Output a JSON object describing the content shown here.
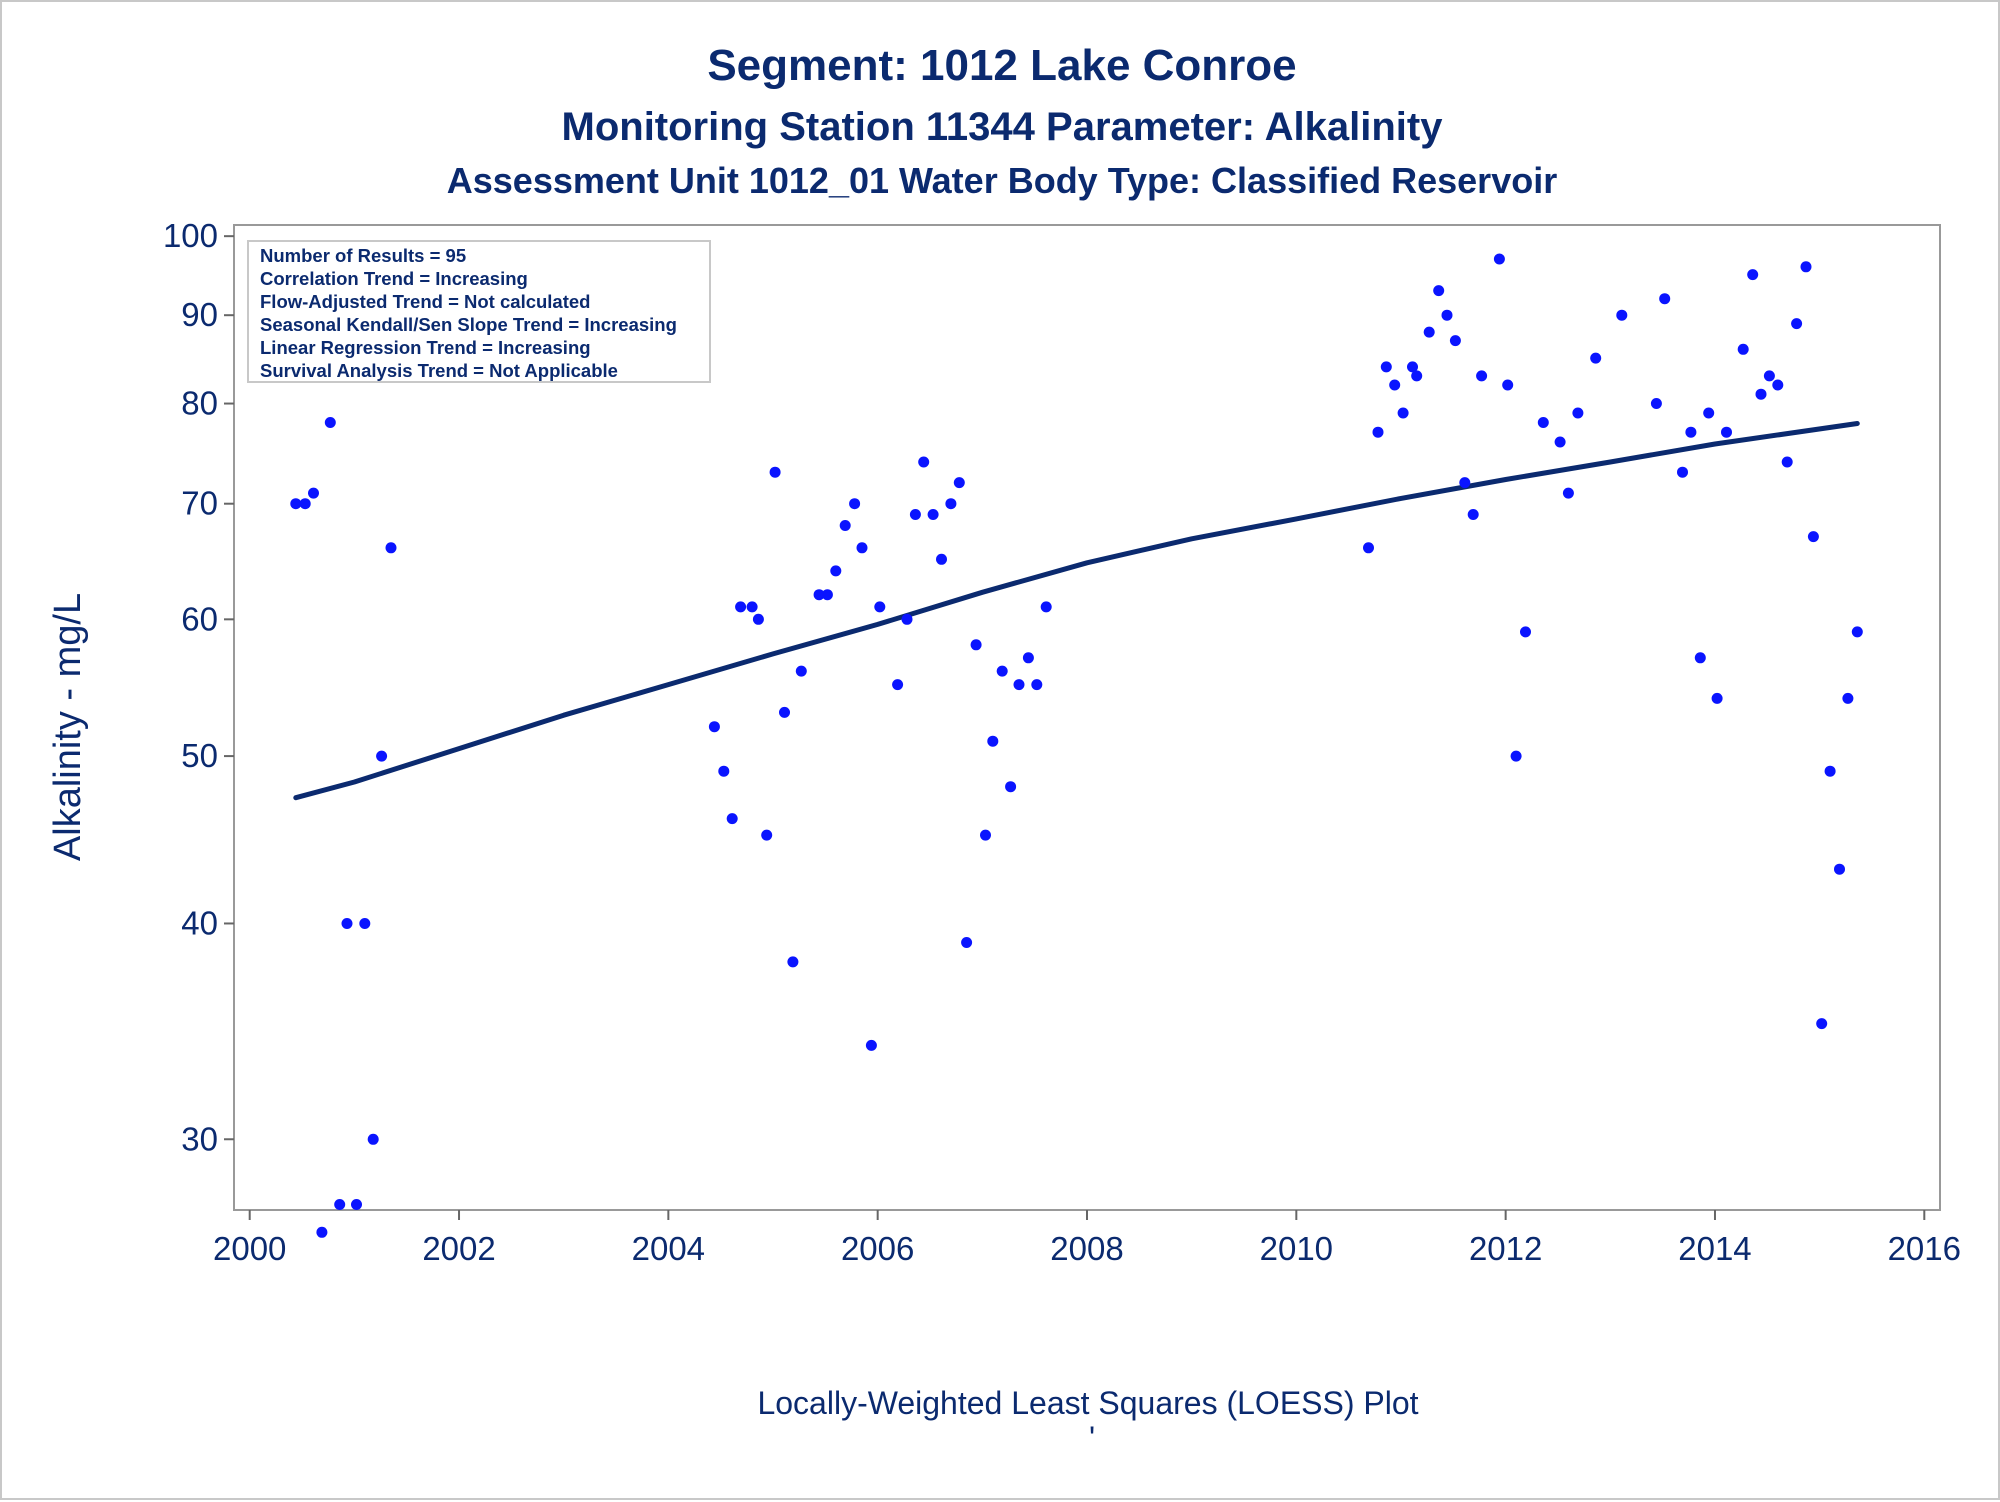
{
  "chart_data": {
    "type": "scatter",
    "title": "Segment: 1012  Lake Conroe",
    "subtitle1": "Monitoring Station 11344 Parameter: Alkalinity",
    "subtitle2": "Assessment Unit 1012_01   Water Body Type: Classified Reservoir",
    "xlabel": "",
    "ylabel": "Alkalinity - mg/L",
    "footnote": "Locally-Weighted Least Squares (LOESS) Plot",
    "footnote_mark": "'",
    "xlim": [
      1999.85,
      2016.15
    ],
    "ylim": [
      27.3,
      101.5
    ],
    "y_scale": "log",
    "x_ticks": [
      2000,
      2002,
      2004,
      2006,
      2008,
      2010,
      2012,
      2014,
      2016
    ],
    "y_ticks": [
      30,
      40,
      50,
      60,
      70,
      80,
      90,
      100
    ],
    "grid": false,
    "legend_placement": "top-left",
    "stats_box": [
      "Number of Results = 95",
      "Correlation Trend = Increasing",
      "Flow-Adjusted Trend = Not calculated",
      "Seasonal Kendall/Sen Slope Trend = Increasing",
      "Linear Regression Trend = Increasing",
      "Survival Analysis Trend = Not Applicable"
    ],
    "series": [
      {
        "kind": "points",
        "color": "#0a14ff",
        "points": [
          [
            2000.44,
            70
          ],
          [
            2000.53,
            70
          ],
          [
            2000.61,
            71
          ],
          [
            2000.69,
            26.5
          ],
          [
            2000.77,
            78
          ],
          [
            2000.86,
            27.5
          ],
          [
            2000.93,
            40
          ],
          [
            2001.02,
            27.5
          ],
          [
            2001.1,
            40
          ],
          [
            2001.18,
            30
          ],
          [
            2001.26,
            50
          ],
          [
            2001.35,
            66
          ],
          [
            2004.44,
            52
          ],
          [
            2004.53,
            49
          ],
          [
            2004.61,
            46
          ],
          [
            2004.69,
            61
          ],
          [
            2004.8,
            61
          ],
          [
            2004.86,
            60
          ],
          [
            2004.94,
            45
          ],
          [
            2005.02,
            73
          ],
          [
            2005.11,
            53
          ],
          [
            2005.19,
            38
          ],
          [
            2005.27,
            56
          ],
          [
            2005.44,
            62
          ],
          [
            2005.52,
            62
          ],
          [
            2005.6,
            64
          ],
          [
            2005.69,
            68
          ],
          [
            2005.78,
            70
          ],
          [
            2005.85,
            66
          ],
          [
            2005.94,
            34
          ],
          [
            2006.02,
            61
          ],
          [
            2006.19,
            55
          ],
          [
            2006.28,
            60
          ],
          [
            2006.36,
            69
          ],
          [
            2006.44,
            74
          ],
          [
            2006.53,
            69
          ],
          [
            2006.61,
            65
          ],
          [
            2006.7,
            70
          ],
          [
            2006.78,
            72
          ],
          [
            2006.85,
            39
          ],
          [
            2006.94,
            58
          ],
          [
            2007.03,
            45
          ],
          [
            2007.1,
            51
          ],
          [
            2007.19,
            56
          ],
          [
            2007.27,
            48
          ],
          [
            2007.35,
            55
          ],
          [
            2007.44,
            57
          ],
          [
            2007.52,
            55
          ],
          [
            2007.61,
            61
          ],
          [
            2010.69,
            66
          ],
          [
            2010.78,
            77
          ],
          [
            2010.86,
            84
          ],
          [
            2010.94,
            82
          ],
          [
            2011.02,
            79
          ],
          [
            2011.11,
            84
          ],
          [
            2011.15,
            83
          ],
          [
            2011.27,
            88
          ],
          [
            2011.36,
            93
          ],
          [
            2011.44,
            90
          ],
          [
            2011.52,
            87
          ],
          [
            2011.61,
            72
          ],
          [
            2011.69,
            69
          ],
          [
            2011.77,
            83
          ],
          [
            2011.94,
            97
          ],
          [
            2012.02,
            82
          ],
          [
            2012.1,
            50
          ],
          [
            2012.19,
            59
          ],
          [
            2012.36,
            78
          ],
          [
            2012.52,
            76
          ],
          [
            2012.6,
            71
          ],
          [
            2012.69,
            79
          ],
          [
            2012.86,
            85
          ],
          [
            2013.11,
            90
          ],
          [
            2013.44,
            80
          ],
          [
            2013.52,
            92
          ],
          [
            2013.69,
            73
          ],
          [
            2013.77,
            77
          ],
          [
            2013.86,
            57
          ],
          [
            2013.94,
            79
          ],
          [
            2014.02,
            54
          ],
          [
            2014.11,
            77
          ],
          [
            2014.27,
            86
          ],
          [
            2014.36,
            95
          ],
          [
            2014.44,
            81
          ],
          [
            2014.52,
            83
          ],
          [
            2014.6,
            82
          ],
          [
            2014.69,
            74
          ],
          [
            2014.78,
            89
          ],
          [
            2014.87,
            96
          ],
          [
            2014.94,
            67
          ],
          [
            2015.02,
            35
          ],
          [
            2015.1,
            49
          ],
          [
            2015.19,
            43
          ],
          [
            2015.27,
            54
          ],
          [
            2015.36,
            59
          ]
        ]
      },
      {
        "kind": "line",
        "color": "#0b2a6f",
        "points": [
          [
            2000.44,
            47.3
          ],
          [
            2001.0,
            48.3
          ],
          [
            2002.0,
            50.5
          ],
          [
            2003.0,
            52.8
          ],
          [
            2004.0,
            55.0
          ],
          [
            2005.0,
            57.3
          ],
          [
            2006.0,
            59.6
          ],
          [
            2007.0,
            62.2
          ],
          [
            2008.0,
            64.7
          ],
          [
            2009.0,
            66.8
          ],
          [
            2010.0,
            68.6
          ],
          [
            2011.0,
            70.5
          ],
          [
            2012.0,
            72.3
          ],
          [
            2013.0,
            74.0
          ],
          [
            2014.0,
            75.8
          ],
          [
            2015.36,
            77.9
          ]
        ]
      }
    ]
  }
}
